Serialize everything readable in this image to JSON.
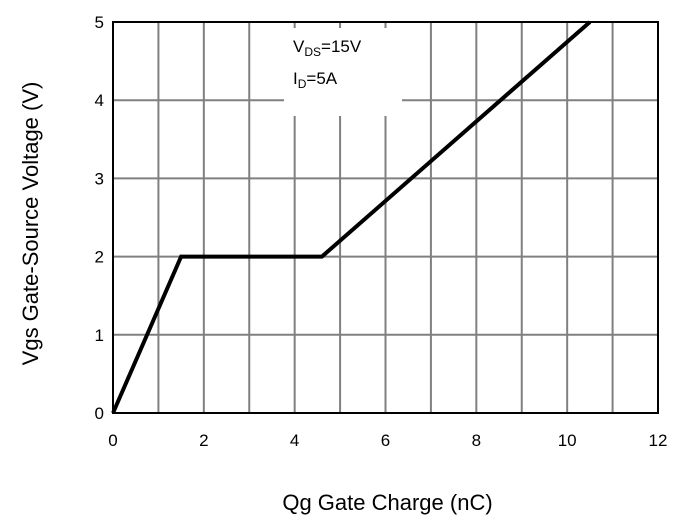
{
  "chart_data": {
    "type": "line",
    "xlabel": "Qg Gate Charge (nC)",
    "ylabel": "Vgs Gate-Source Voltage (V)",
    "xlim": [
      0,
      12
    ],
    "ylim": [
      0,
      5
    ],
    "xticks": [
      0,
      2,
      4,
      6,
      8,
      10,
      12
    ],
    "yticks": [
      0,
      1,
      2,
      3,
      4,
      5
    ],
    "x_grid": [
      0,
      1,
      2,
      3,
      4,
      5,
      6,
      7,
      8,
      9,
      10,
      11,
      12
    ],
    "grid": true,
    "series": [
      {
        "x": [
          0,
          1.5,
          4.6,
          10.5
        ],
        "y": [
          0,
          2,
          2,
          5
        ]
      }
    ],
    "annotations": [
      {
        "main": "V",
        "sub": "DS",
        "suffix": "=15V"
      },
      {
        "main": "I",
        "sub": "D",
        "suffix": "=5A"
      }
    ],
    "colors": {
      "line": "#000000",
      "grid": "#808080",
      "axis": "#000000"
    }
  }
}
